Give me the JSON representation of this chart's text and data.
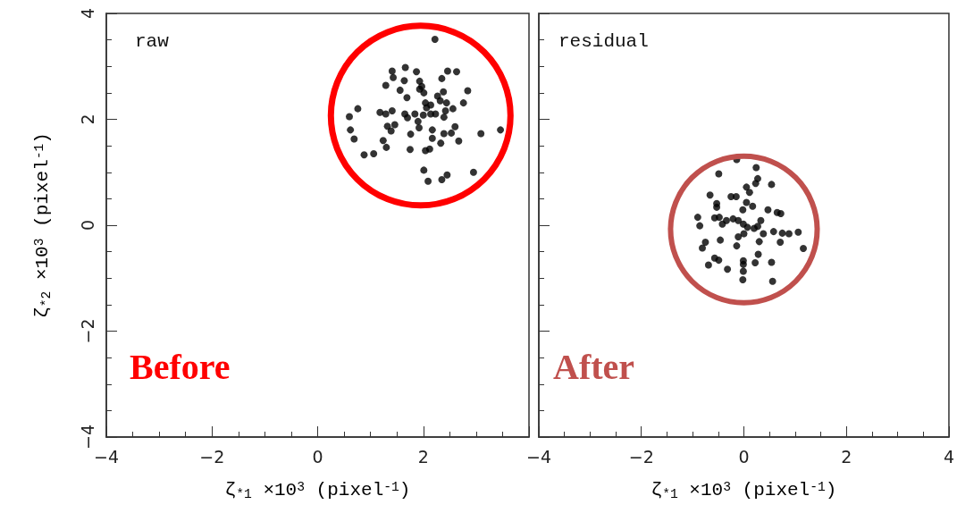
{
  "chart_data": [
    {
      "type": "scatter",
      "xlabel": "ζ$_{*1}$ ×10$^{3}$ (pixel$^{-1}$)",
      "ylabel": "ζ$_{*2}$ ×10$^{3}$ (pixel$^{-1}$)",
      "annotations": [
        "raw",
        "Before"
      ],
      "xlim": [
        -4,
        4
      ],
      "xticks": [
        -4,
        -2,
        0,
        2,
        {
          "value": 4,
          "label": null
        }
      ],
      "ylim": [
        -4,
        4
      ],
      "yticks": [
        -4,
        -2,
        0,
        2,
        4
      ],
      "marker": "circle",
      "series": [
        {
          "color": "#000000",
          "x": [
            2.22,
            1.41,
            1.66,
            1.87,
            2.46,
            2.63,
            1.43,
            1.64,
            1.93,
            2.35,
            1.29,
            1.97,
            1.56,
            1.93,
            2.84,
            2.01,
            2.38,
            1.69,
            2.27,
            2.32,
            2.44,
            2.76,
            2.04,
            2.14,
            0.76,
            2.56,
            2.06,
            2.42,
            1.18,
            1.29,
            1.41,
            1.65,
            1.84,
            2.0,
            2.14,
            2.23,
            0.6,
            1.7,
            2.39,
            1.9,
            1.32,
            1.46,
            1.92,
            2.6,
            0.62,
            1.39,
            2.17,
            3.46,
            2.39,
            2.53,
            3.09,
            1.76,
            0.69,
            2.17,
            1.24,
            2.67,
            2.33,
            1.3,
            1.75,
            2.04,
            2.12,
            0.88,
            1.06,
            2.01,
            2.95,
            2.45,
            2.35,
            2.09
          ],
          "values": [
            3.51,
            2.91,
            2.98,
            2.9,
            2.91,
            2.9,
            2.79,
            2.73,
            2.72,
            2.77,
            2.64,
            2.62,
            2.55,
            2.57,
            2.54,
            2.5,
            2.52,
            2.41,
            2.44,
            2.35,
            2.31,
            2.31,
            2.31,
            2.27,
            2.2,
            2.2,
            2.22,
            2.16,
            2.13,
            2.1,
            2.16,
            2.1,
            2.1,
            2.08,
            2.1,
            2.1,
            2.05,
            2.03,
            2.04,
            1.96,
            1.87,
            1.9,
            1.84,
            1.86,
            1.8,
            1.78,
            1.8,
            1.8,
            1.73,
            1.74,
            1.73,
            1.72,
            1.63,
            1.64,
            1.6,
            1.59,
            1.55,
            1.47,
            1.43,
            1.41,
            1.44,
            1.33,
            1.35,
            1.04,
            1.0,
            0.95,
            0.86,
            0.83
          ]
        }
      ]
    },
    {
      "type": "scatter",
      "xlabel": "ζ$_{*1}$ ×10$^{3}$ (pixel$^{-1}$)",
      "annotations": [
        "residual",
        "After"
      ],
      "xlim": [
        -4,
        4
      ],
      "xticks": [
        -4,
        -2,
        0,
        2,
        4
      ],
      "ylim": [
        -4,
        4
      ],
      "yticks": [
        -4,
        -2,
        0,
        2,
        4
      ],
      "tick_labels": "x",
      "marker": "circle",
      "series": [
        {
          "color": "#000000",
          "x": [
            -0.14,
            0.24,
            -0.49,
            0.27,
            0.23,
            0.54,
            0.05,
            0.11,
            -0.66,
            -0.25,
            -0.15,
            -0.53,
            0.05,
            0.17,
            -0.53,
            -0.02,
            0.47,
            0.65,
            0.72,
            -0.9,
            -0.57,
            -0.48,
            -0.21,
            -0.11,
            0.33,
            -0.34,
            -0.86,
            -0.42,
            -0.01,
            0.07,
            0.2,
            0.27,
            0.58,
            0.75,
            0.88,
            1.06,
            0.38,
            0.0,
            -0.11,
            -0.75,
            -0.46,
            0.3,
            0.71,
            -0.14,
            -0.81,
            1.16,
            0.28,
            -0.57,
            -0.49,
            -0.01,
            0.22,
            0.54,
            -0.69,
            -0.01,
            -0.32,
            -0.01,
            -0.02,
            0.56
          ],
          "values": [
            1.24,
            1.09,
            0.97,
            0.88,
            0.79,
            0.77,
            0.72,
            0.62,
            0.57,
            0.54,
            0.54,
            0.41,
            0.43,
            0.36,
            0.34,
            0.29,
            0.29,
            0.24,
            0.22,
            0.15,
            0.14,
            0.15,
            0.12,
            0.09,
            0.09,
            0.09,
            -0.01,
            0.02,
            0.02,
            -0.04,
            -0.06,
            -0.02,
            -0.12,
            -0.15,
            -0.16,
            -0.13,
            -0.16,
            -0.16,
            -0.22,
            -0.32,
            -0.28,
            -0.31,
            -0.32,
            -0.39,
            -0.43,
            -0.44,
            -0.55,
            -0.62,
            -0.66,
            -0.67,
            -0.71,
            -0.7,
            -0.75,
            -0.74,
            -0.83,
            -0.87,
            -1.03,
            -1.06
          ]
        }
      ]
    }
  ]
}
